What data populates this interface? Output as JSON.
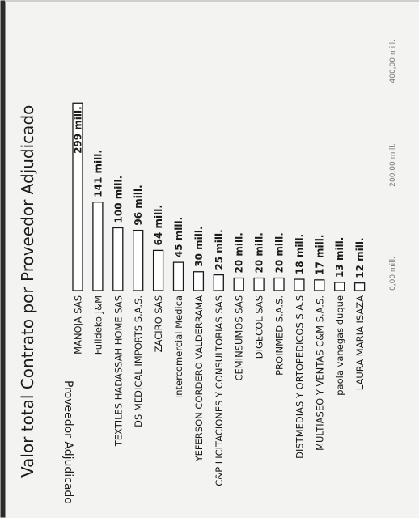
{
  "chart_data": {
    "type": "bar",
    "orientation": "horizontal",
    "title": "Valor total Contrato por Proveedor Adjudicado",
    "ylabel": "Proveedor Adjudicado",
    "xlabel": "",
    "categories": [
      "MANOJA SAS",
      "Fulldeko J&M",
      "TEXTILES HADASSAH HOME SAS",
      "DS MEDICAL IMPORTS S.A.S.",
      "ZACIRO SAS",
      "Intercomercial Medica",
      "YEFERSON CORDERO VALDERRAMA",
      "C&P LICITACIONES Y CONSULTORIAS SAS",
      "CEMINSUMOS SAS",
      "DIGECOL SAS",
      "PROINMED S.A.S.",
      "DISTMEDIAS Y ORTOPEDICOS S.A.S",
      "MULTIASEO Y VENTAS C&M S.A.S.",
      "paola vanegas duque",
      "LAURA MARIA ISAZA"
    ],
    "values": [
      299,
      141,
      100,
      96,
      64,
      45,
      30,
      25,
      20,
      20,
      20,
      18,
      17,
      13,
      12
    ],
    "data_labels": [
      "299 mill.",
      "141 mill.",
      "100 mill.",
      "96 mill.",
      "64 mill.",
      "45 mill.",
      "30 mill.",
      "25 mill.",
      "20 mill.",
      "20 mill.",
      "20 mill.",
      "18 mill.",
      "17 mill.",
      "13 mill.",
      "12 mill."
    ],
    "xticks": [
      0,
      200,
      400
    ],
    "xtick_labels": [
      "0,00 mill.",
      "200,00 mill.",
      "400,00 mill."
    ],
    "xlim": [
      0,
      400
    ],
    "grid": false,
    "legend": "none",
    "colors": {
      "bar_fill": "#ffffff",
      "bar_stroke": "#1a1a1a",
      "text": "#1a1a1a",
      "tick_text": "#777777"
    }
  }
}
